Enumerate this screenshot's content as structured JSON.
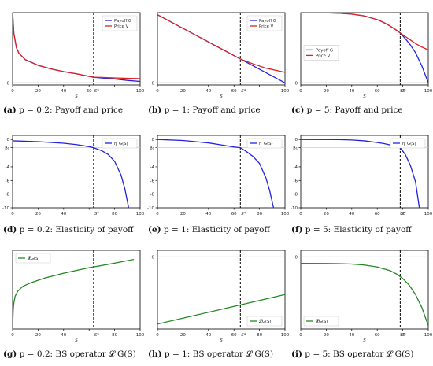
{
  "chart_data": [
    {
      "id": "a",
      "type": "line",
      "caption_label": "(a)",
      "caption_text": "p = 0.2: Payoff and price",
      "xlabel": "S",
      "ylabel": "",
      "xlim": [
        0,
        100
      ],
      "ylim": [
        -3,
        100
      ],
      "xticks": [
        0,
        20,
        40,
        60,
        80,
        100
      ],
      "xtick_labels": [
        "0",
        "20",
        "40",
        "60",
        "",
        "100"
      ],
      "yticks": [
        0
      ],
      "ytick_labels": [
        "0"
      ],
      "hline": 0,
      "vline": 63.5,
      "vline_label": "S*",
      "legend": "top-right",
      "series": [
        {
          "name": "Payoff G",
          "color": "#2222dd",
          "x": [
            0,
            1,
            3,
            5,
            10,
            20,
            30,
            40,
            50,
            63.5,
            70,
            80,
            90,
            100
          ],
          "y": [
            100,
            70,
            50,
            42,
            33,
            25,
            20,
            16,
            13,
            8,
            7,
            5.5,
            3.5,
            2
          ]
        },
        {
          "name": "Price V",
          "color": "#dd2222",
          "x": [
            0,
            1,
            3,
            5,
            10,
            20,
            30,
            40,
            50,
            63.5,
            70,
            80,
            90,
            100
          ],
          "y": [
            100,
            70,
            50,
            42,
            33,
            25,
            20,
            16,
            13,
            8,
            7.8,
            7,
            6.5,
            6
          ]
        }
      ]
    },
    {
      "id": "b",
      "type": "line",
      "caption_label": "(b)",
      "caption_text": "p = 1: Payoff and price",
      "xlabel": "S",
      "ylabel": "",
      "xlim": [
        0,
        100
      ],
      "ylim": [
        -3,
        100
      ],
      "xticks": [
        0,
        20,
        40,
        60,
        80,
        100
      ],
      "xtick_labels": [
        "0",
        "20",
        "40",
        "60",
        "",
        "100"
      ],
      "yticks": [
        0
      ],
      "ytick_labels": [
        "0"
      ],
      "hline": 0,
      "vline": 65,
      "vline_label": "S*",
      "legend": "top-right",
      "series": [
        {
          "name": "Payoff G",
          "color": "#2222dd",
          "x": [
            0,
            65,
            100
          ],
          "y": [
            97,
            34,
            0
          ]
        },
        {
          "name": "Price V",
          "color": "#dd2222",
          "x": [
            0,
            65,
            75,
            85,
            100
          ],
          "y": [
            97,
            34,
            27,
            21,
            15
          ]
        }
      ]
    },
    {
      "id": "c",
      "type": "line",
      "caption_label": "(c)",
      "caption_text": "p = 5: Payoff and price",
      "xlabel": "S",
      "ylabel": "",
      "xlim": [
        0,
        100
      ],
      "ylim": [
        -3,
        100
      ],
      "xticks": [
        0,
        20,
        40,
        60,
        80,
        100
      ],
      "xtick_labels": [
        "0",
        "20",
        "40",
        "60",
        "80",
        "100"
      ],
      "yticks": [
        0
      ],
      "ytick_labels": [
        "0"
      ],
      "hline": 0,
      "vline": 78,
      "vline_label": "S*",
      "legend": "center-left",
      "series": [
        {
          "name": "Payoff G",
          "color": "#2222dd",
          "x": [
            0,
            20,
            30,
            40,
            50,
            60,
            65,
            70,
            75,
            78,
            82,
            86,
            90,
            95,
            100
          ],
          "y": [
            99.9,
            99.7,
            99.2,
            97.9,
            95.2,
            90,
            86,
            81,
            75,
            71,
            63,
            54,
            43,
            24,
            0
          ]
        },
        {
          "name": "Price V",
          "color": "#dd2222",
          "x": [
            0,
            20,
            30,
            40,
            50,
            60,
            65,
            70,
            75,
            78,
            82,
            86,
            90,
            95,
            100
          ],
          "y": [
            99.9,
            99.7,
            99.2,
            97.9,
            95.2,
            90,
            86,
            81,
            75,
            71,
            66,
            61,
            56,
            51,
            47
          ]
        }
      ]
    },
    {
      "id": "d",
      "type": "line",
      "caption_label": "(d)",
      "caption_text": "p = 0.2: Elasticity of payoff",
      "xlabel": "",
      "ylabel": "",
      "xlim": [
        0,
        100
      ],
      "ylim": [
        -10,
        0.6
      ],
      "xticks": [
        0,
        20,
        40,
        60,
        80,
        100
      ],
      "xtick_labels": [
        "0",
        "20",
        "40",
        "",
        "80",
        "100"
      ],
      "yticks": [
        0,
        -1.2,
        -4,
        -6,
        -8,
        -10
      ],
      "ytick_labels": [
        "0",
        "β₁",
        "-4",
        "-6",
        "-8",
        "-10"
      ],
      "hline": -1.2,
      "hline_style": "light",
      "vline": 63.5,
      "vline_label": "S*",
      "legend": "top-right",
      "series": [
        {
          "name": "η_G(S)",
          "color": "#2222dd",
          "x": [
            0,
            20,
            40,
            50,
            60,
            63.5,
            70,
            75,
            80,
            85,
            88,
            91
          ],
          "y": [
            -0.2,
            -0.32,
            -0.55,
            -0.75,
            -1.05,
            -1.2,
            -1.65,
            -2.2,
            -3.2,
            -5.2,
            -7.2,
            -10
          ]
        }
      ]
    },
    {
      "id": "e",
      "type": "line",
      "caption_label": "(e)",
      "caption_text": "p = 1: Elasticity of payoff",
      "xlabel": "",
      "ylabel": "",
      "xlim": [
        0,
        100
      ],
      "ylim": [
        -10,
        0.6
      ],
      "xticks": [
        0,
        20,
        40,
        60,
        80,
        100
      ],
      "xtick_labels": [
        "0",
        "20",
        "40",
        "60",
        "80",
        "100"
      ],
      "yticks": [
        0,
        -1.2,
        -4,
        -6,
        -8,
        -10
      ],
      "ytick_labels": [
        "0",
        "β₁",
        "-4",
        "-6",
        "-8",
        "-10"
      ],
      "hline": -1.2,
      "hline_style": "light",
      "vline": 65,
      "vline_label": "S*",
      "legend": "top-right",
      "series": [
        {
          "name": "η_G(S)",
          "color": "#2222dd",
          "x": [
            0,
            20,
            40,
            50,
            60,
            65,
            70,
            75,
            80,
            85,
            88,
            91
          ],
          "y": [
            0,
            -0.15,
            -0.5,
            -0.8,
            -1.1,
            -1.2,
            -1.8,
            -2.5,
            -3.5,
            -5.6,
            -7.5,
            -10
          ]
        }
      ]
    },
    {
      "id": "f",
      "type": "line",
      "caption_label": "(f)",
      "caption_text": "p = 5: Elasticity of payoff",
      "xlabel": "",
      "ylabel": "",
      "xlim": [
        0,
        100
      ],
      "ylim": [
        -10,
        0.6
      ],
      "xticks": [
        0,
        20,
        40,
        60,
        80,
        100
      ],
      "xtick_labels": [
        "0",
        "20",
        "40",
        "60",
        "80",
        "100"
      ],
      "yticks": [
        0,
        -1.2,
        -4,
        -6,
        -8,
        -10
      ],
      "ytick_labels": [
        "0",
        "β₁",
        "-4",
        "-6",
        "-8",
        "-10"
      ],
      "hline": -1.2,
      "hline_style": "light",
      "vline": 78,
      "vline_label": "S*",
      "legend": "top-right",
      "series": [
        {
          "name": "η_G(S)",
          "color": "#2222dd",
          "x": [
            0,
            30,
            40,
            50,
            60,
            65,
            70,
            75,
            78,
            82,
            86,
            90,
            93
          ],
          "y": [
            0,
            -0.02,
            -0.08,
            -0.2,
            -0.45,
            -0.6,
            -0.8,
            -1.05,
            -1.2,
            -2.2,
            -3.8,
            -6.2,
            -10
          ]
        }
      ]
    },
    {
      "id": "g",
      "type": "line",
      "caption_label": "(g)",
      "caption_text": "p = 0.2: BS operator 𝓛 G(S)",
      "xlabel": "S",
      "ylabel": "",
      "xlim": [
        0,
        100
      ],
      "ylim": [
        -22,
        2
      ],
      "xticks": [
        0,
        20,
        40,
        60,
        80,
        100
      ],
      "xtick_labels": [
        "0",
        "20",
        "40",
        "",
        "80",
        "100"
      ],
      "yticks": [],
      "ytick_labels": [],
      "vline": 63.5,
      "vline_label": "S*",
      "legend": "top-left",
      "series": [
        {
          "name": "𝓛G(S)",
          "color": "#228822",
          "x": [
            0,
            0.5,
            1,
            2,
            4,
            8,
            15,
            25,
            40,
            60,
            75,
            95
          ],
          "y": [
            -21.5,
            -16,
            -14,
            -12,
            -10.5,
            -9,
            -7.8,
            -6.5,
            -5,
            -3.3,
            -2.3,
            -0.8
          ]
        }
      ]
    },
    {
      "id": "h",
      "type": "line",
      "caption_label": "(h)",
      "caption_text": "p = 1: BS operator 𝓛 G(S)",
      "xlabel": "S",
      "ylabel": "",
      "xlim": [
        0,
        100
      ],
      "ylim": [
        -22,
        2
      ],
      "xticks": [
        0,
        20,
        40,
        60,
        80,
        100
      ],
      "xtick_labels": [
        "0",
        "20",
        "40",
        "60",
        "80",
        "100"
      ],
      "yticks": [
        0
      ],
      "ytick_labels": [
        "0"
      ],
      "hline": 0,
      "hline_style": "light",
      "vline": 65,
      "vline_label": "S*",
      "legend": "bottom-right",
      "series": [
        {
          "name": "𝓛G(S)",
          "color": "#228822",
          "x": [
            0,
            100
          ],
          "y": [
            -20.5,
            -11.5
          ]
        }
      ]
    },
    {
      "id": "i",
      "type": "line",
      "caption_label": "(i)",
      "caption_text": "p = 5: BS operator 𝓛 G(S)",
      "xlabel": "S",
      "ylabel": "",
      "xlim": [
        0,
        100
      ],
      "ylim": [
        -22,
        2
      ],
      "xticks": [
        0,
        20,
        40,
        60,
        80,
        100
      ],
      "xtick_labels": [
        "0",
        "20",
        "40",
        "60",
        "80",
        "100"
      ],
      "yticks": [
        0
      ],
      "ytick_labels": [
        "0"
      ],
      "hline": 0,
      "hline_style": "light",
      "vline": 78,
      "vline_label": "S*",
      "legend": "bottom-left",
      "series": [
        {
          "name": "𝓛G(S)",
          "color": "#228822",
          "x": [
            0,
            20,
            30,
            40,
            50,
            60,
            70,
            75,
            80,
            85,
            90,
            95,
            100
          ],
          "y": [
            -2,
            -2.02,
            -2.08,
            -2.2,
            -2.5,
            -3.1,
            -4.2,
            -5.2,
            -6.6,
            -8.6,
            -11.5,
            -15.5,
            -21
          ]
        }
      ]
    }
  ]
}
